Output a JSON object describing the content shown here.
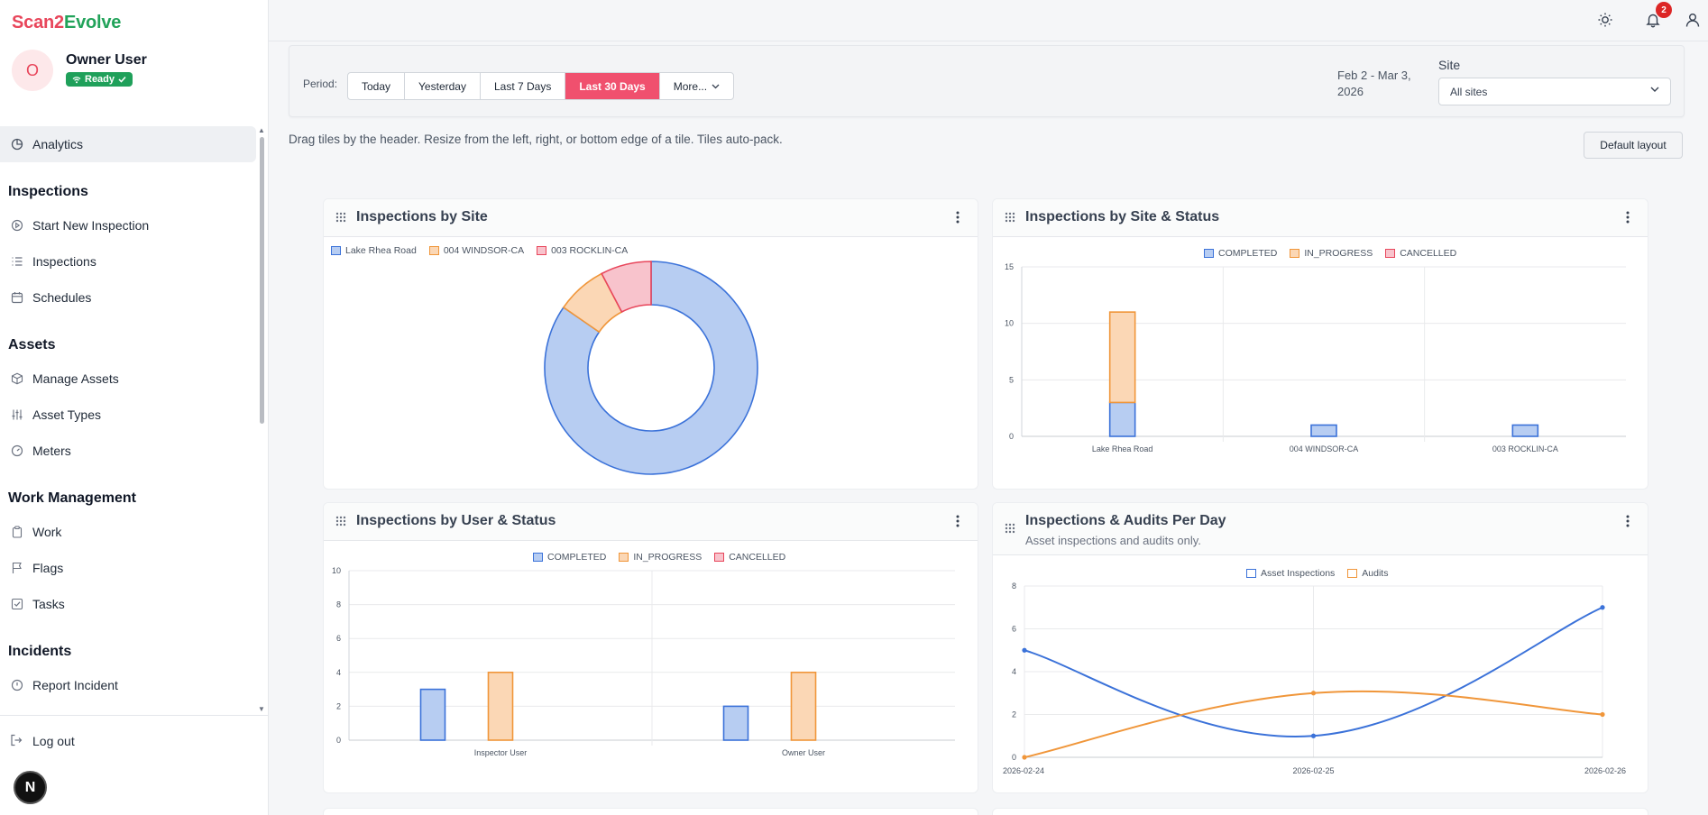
{
  "app": {
    "brand_part1": "Scan2",
    "brand_part2": "Evolve"
  },
  "user": {
    "initial": "O",
    "name": "Owner User",
    "status": "Ready"
  },
  "nav": {
    "analytics": "Analytics",
    "sections": {
      "inspections": "Inspections",
      "assets": "Assets",
      "work": "Work Management",
      "incidents": "Incidents"
    },
    "items": {
      "start_new_inspection": "Start New Inspection",
      "inspections": "Inspections",
      "schedules": "Schedules",
      "manage_assets": "Manage Assets",
      "asset_types": "Asset Types",
      "meters": "Meters",
      "work": "Work",
      "flags": "Flags",
      "tasks": "Tasks",
      "report_incident": "Report Incident"
    },
    "logout": "Log out",
    "dev_badge": "N"
  },
  "topbar": {
    "notification_count": "2",
    "icons": [
      "sun-icon",
      "bell-icon",
      "user-icon"
    ]
  },
  "filters": {
    "period_label": "Period:",
    "periods": [
      "Today",
      "Yesterday",
      "Last 7 Days",
      "Last 30 Days",
      "More..."
    ],
    "active_period": "Last 30 Days",
    "date_range": "Feb 2 - Mar 3, 2026",
    "site_label": "Site",
    "site_value": "All sites"
  },
  "dashboard": {
    "hint": "Drag tiles by the header. Resize from the left, right, or bottom edge of a tile. Tiles auto-pack.",
    "default_layout": "Default layout"
  },
  "colors": {
    "blue": "#3b72d9",
    "blue_fill": "#b7cdf2",
    "orange": "#f0963a",
    "orange_fill": "#fbd7b5",
    "red": "#e8465b",
    "red_fill": "#f8c3cc",
    "accent": "#f0506e",
    "brand_red": "#e8465b",
    "brand_green": "#22a35a"
  },
  "tiles": {
    "by_site": {
      "title": "Inspections by Site"
    },
    "by_site_status": {
      "title": "Inspections by Site & Status"
    },
    "by_user_status": {
      "title": "Inspections by User & Status"
    },
    "per_day": {
      "title": "Inspections & Audits Per Day",
      "subtitle": "Asset inspections and audits only."
    }
  },
  "chart_data": [
    {
      "type": "pie",
      "title": "Inspections by Site",
      "legend_position": "top",
      "categories": [
        "Lake Rhea Road",
        "004 WINDSOR-CA",
        "003 ROCKLIN-CA"
      ],
      "values": [
        11,
        1,
        1
      ]
    },
    {
      "type": "bar",
      "stacked": true,
      "title": "Inspections by Site & Status",
      "legend_position": "top",
      "categories": [
        "Lake Rhea Road",
        "004 WINDSOR-CA",
        "003 ROCKLIN-CA"
      ],
      "series": [
        {
          "name": "COMPLETED",
          "values": [
            3,
            1,
            1
          ]
        },
        {
          "name": "IN_PROGRESS",
          "values": [
            8,
            0,
            0
          ]
        },
        {
          "name": "CANCELLED",
          "values": [
            0,
            0,
            0
          ]
        }
      ],
      "ylim": [
        0,
        15
      ],
      "yticks": [
        0,
        5,
        10,
        15
      ],
      "grid": true
    },
    {
      "type": "bar",
      "stacked": false,
      "title": "Inspections by User & Status",
      "legend_position": "top",
      "categories": [
        "Inspector User",
        "Owner User"
      ],
      "series": [
        {
          "name": "COMPLETED",
          "values": [
            3,
            2
          ]
        },
        {
          "name": "IN_PROGRESS",
          "values": [
            4,
            4
          ]
        },
        {
          "name": "CANCELLED",
          "values": [
            0,
            0
          ]
        }
      ],
      "ylim": [
        0,
        10
      ],
      "yticks": [
        0,
        2,
        4,
        6,
        8,
        10
      ],
      "grid": true
    },
    {
      "type": "line",
      "title": "Inspections & Audits Per Day",
      "subtitle": "Asset inspections and audits only.",
      "legend_position": "top",
      "x": [
        "2026-02-24",
        "2026-02-25",
        "2026-02-26"
      ],
      "series": [
        {
          "name": "Asset Inspections",
          "values": [
            5,
            1,
            7
          ]
        },
        {
          "name": "Audits",
          "values": [
            0,
            3,
            2
          ]
        }
      ],
      "ylim": [
        0,
        8
      ],
      "yticks": [
        0,
        2,
        4,
        6,
        8
      ],
      "grid": true
    }
  ]
}
